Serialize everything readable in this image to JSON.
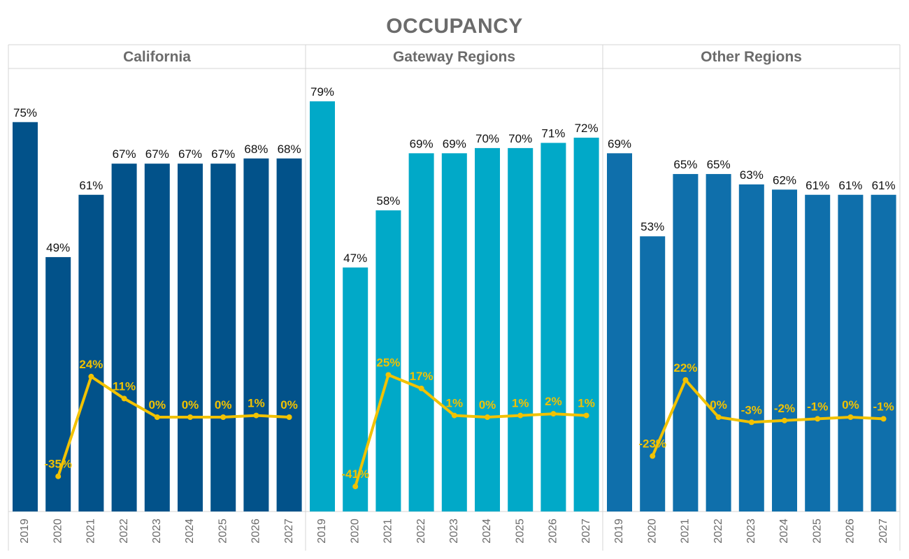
{
  "chart_data": {
    "type": "bar",
    "title": "OCCUPANCY",
    "xlabel": "",
    "ylabel": "",
    "ylim": [
      0,
      85
    ],
    "grid": false,
    "legend": "none",
    "line_color": "#f2c200",
    "categories": [
      "2019",
      "2020",
      "2021",
      "2022",
      "2023",
      "2024",
      "2025",
      "2026",
      "2027"
    ],
    "panels": [
      {
        "name": "California",
        "color": "#02528a",
        "values": [
          75,
          49,
          61,
          67,
          67,
          67,
          67,
          68,
          68
        ],
        "value_labels": [
          "75%",
          "49%",
          "61%",
          "67%",
          "67%",
          "67%",
          "67%",
          "68%",
          "68%"
        ],
        "change": [
          null,
          -35,
          24,
          11,
          0,
          0,
          0,
          1,
          0
        ],
        "change_labels": [
          "",
          "-35%",
          "24%",
          "11%",
          "0%",
          "0%",
          "0%",
          "1%",
          "0%"
        ]
      },
      {
        "name": "Gateway Regions",
        "color": "#01a9c8",
        "values": [
          79,
          47,
          58,
          69,
          69,
          70,
          70,
          71,
          72
        ],
        "value_labels": [
          "79%",
          "47%",
          "58%",
          "69%",
          "69%",
          "70%",
          "70%",
          "71%",
          "72%"
        ],
        "change": [
          null,
          -41,
          25,
          17,
          1,
          0,
          1,
          2,
          1
        ],
        "change_labels": [
          "",
          "-41%",
          "25%",
          "17%",
          "1%",
          "0%",
          "1%",
          "2%",
          "1%"
        ]
      },
      {
        "name": "Other Regions",
        "color": "#0f6fab",
        "values": [
          69,
          53,
          65,
          65,
          63,
          62,
          61,
          61,
          61
        ],
        "value_labels": [
          "69%",
          "53%",
          "65%",
          "65%",
          "63%",
          "62%",
          "61%",
          "61%",
          "61%"
        ],
        "change": [
          null,
          -23,
          22,
          0,
          -3,
          -2,
          -1,
          0,
          -1
        ],
        "change_labels": [
          "",
          "-23%",
          "22%",
          "0%",
          "-3%",
          "-2%",
          "-1%",
          "0%",
          "-1%"
        ]
      }
    ]
  }
}
